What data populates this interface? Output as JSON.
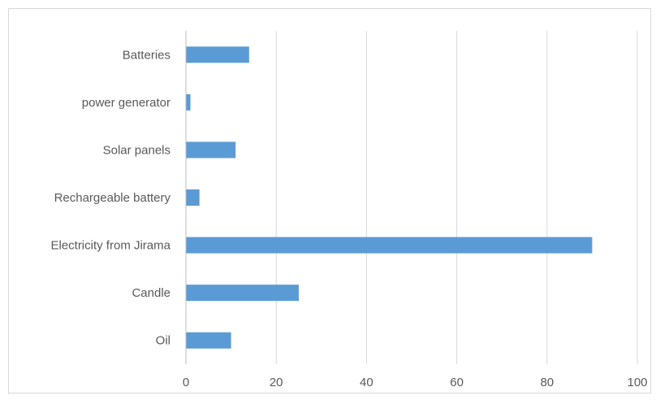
{
  "chart_data": {
    "type": "bar",
    "orientation": "horizontal",
    "title": "",
    "xlabel": "",
    "ylabel": "",
    "categories": [
      "Batteries",
      "power generator",
      "Solar panels",
      "Rechargeable battery",
      "Electricity from Jirama",
      "Candle",
      "Oil"
    ],
    "values": [
      14,
      1,
      11,
      3,
      90,
      25,
      10
    ],
    "xlim": [
      0,
      100
    ],
    "xticks": [
      "0",
      "20",
      "40",
      "60",
      "80",
      "100"
    ],
    "grid": "vertical",
    "legend": "none",
    "colors": {
      "bar": "#5b9bd5",
      "grid": "#d9d9d9",
      "axis": "#bfbfbf",
      "text": "#595959"
    }
  }
}
